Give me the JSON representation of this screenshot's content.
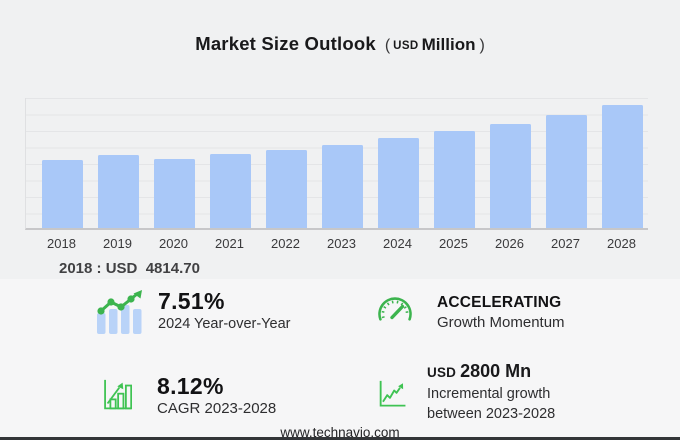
{
  "title": {
    "main": "Market Size Outlook",
    "paren_open": "(",
    "unit_small": "USD",
    "unit_big": "Million",
    "paren_close": ")"
  },
  "chart_data": {
    "type": "bar",
    "title": "Market Size Outlook (USD Million)",
    "unit": "USD Million",
    "categories": [
      "2018",
      "2019",
      "2020",
      "2021",
      "2022",
      "2023",
      "2024",
      "2025",
      "2026",
      "2027",
      "2028"
    ],
    "values": [
      4814.7,
      5163,
      4886,
      5184,
      5509,
      5863.3,
      6303.6,
      6826,
      7332,
      7956,
      8663.3
    ],
    "ylim": [
      0,
      9150
    ],
    "grid": true,
    "legend": "none",
    "bar_color": "#a9c8f8",
    "annotations": [
      "2018 : USD 4814.70"
    ]
  },
  "callout": {
    "text": "2018 : USD  4814.70"
  },
  "stats": [
    {
      "id": "yoy",
      "icon": "bar-trend-icon",
      "value": "7.51%",
      "label": "2024 Year-over-Year"
    },
    {
      "id": "momentum",
      "icon": "gauge-icon",
      "value": "ACCELERATING",
      "label": "Growth Momentum"
    },
    {
      "id": "cagr",
      "icon": "growth-chart-icon",
      "value": "8.12%",
      "label": "CAGR 2023-2028"
    },
    {
      "id": "incremental",
      "icon": "line-chart-icon",
      "value_prefix": "USD",
      "value": "2800 Mn",
      "label_line1": "Incremental growth",
      "label_line2": "between 2023-2028"
    }
  ],
  "footer": {
    "website": "www.technavio.com"
  },
  "colors": {
    "background": "#f0f1f2",
    "panel": "#f6f6f7",
    "bar_blue": "#a9c8f8",
    "icon_bar_blue": "#b9d3f8",
    "icon_green": "#3cb44e",
    "icon_green_outline": "#3fc353",
    "grid_line": "#e4e5e7",
    "axis_line": "#c7c7c9",
    "text_dark": "#19191b"
  }
}
